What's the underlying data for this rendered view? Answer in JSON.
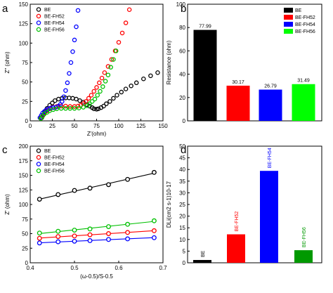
{
  "colors": {
    "BE": "#000000",
    "BE-FH52": "#ff0000",
    "BE-FH54": "#0000ff",
    "BE-FH56": "#00c000",
    "bar_BE-FH56": "#00ff00",
    "legend_BE-FH56_d": "#009900"
  },
  "chart_data": [
    {
      "panel": "a",
      "type": "scatter",
      "xlabel": "Z'(ohm)",
      "ylabel": "Z'' (ohm)",
      "xlim": [
        0,
        150
      ],
      "ylim": [
        0,
        150
      ],
      "xticks": [
        "0",
        "25",
        "50",
        "75",
        "100",
        "125",
        "150"
      ],
      "yticks": [
        "0",
        "25",
        "50",
        "75",
        "100",
        "125",
        "150"
      ],
      "legend_position": "top-left",
      "series": [
        {
          "name": "BE",
          "color": "#000000",
          "x": [
            13,
            15,
            17,
            19,
            22,
            25,
            28,
            32,
            36,
            40,
            44,
            48,
            52,
            56,
            60,
            64,
            67,
            70,
            72,
            75,
            77,
            80,
            83,
            86,
            90,
            94,
            98,
            103,
            108,
            114,
            120,
            128,
            136,
            144
          ],
          "y": [
            4,
            8,
            12,
            16,
            20,
            23,
            26,
            28,
            29,
            29.5,
            29.5,
            29,
            28,
            26,
            24,
            21,
            19,
            17,
            15.5,
            15,
            15.5,
            17,
            19,
            22,
            25,
            29,
            33,
            37,
            41,
            45,
            49,
            54,
            58,
            62
          ]
        },
        {
          "name": "BE-FH52",
          "color": "#ff0000",
          "x": [
            12,
            14,
            16,
            19,
            22,
            26,
            30,
            35,
            40,
            45,
            50,
            54,
            57,
            60,
            63,
            66,
            69,
            72,
            75,
            78,
            81,
            84,
            88,
            92,
            96,
            100,
            104,
            108,
            112
          ],
          "y": [
            4,
            7,
            10,
            13,
            15.5,
            17.5,
            18.5,
            19,
            19,
            18.5,
            18.5,
            19,
            20,
            22,
            25,
            29,
            33,
            38,
            43,
            49,
            55,
            62,
            70,
            79,
            90,
            101,
            113,
            126,
            143
          ]
        },
        {
          "name": "BE-FH54",
          "color": "#0000ff",
          "x": [
            11,
            12.5,
            14,
            16,
            18,
            20.5,
            23,
            26,
            29,
            32,
            34,
            36,
            38,
            40,
            42,
            44,
            46,
            48,
            50,
            52,
            54
          ],
          "y": [
            4,
            7,
            10,
            12,
            14,
            15.5,
            16.5,
            17,
            17.5,
            19,
            21,
            25,
            31,
            39,
            49,
            61,
            75,
            89,
            104,
            121,
            142
          ]
        },
        {
          "name": "BE-FH56",
          "color": "#00c000",
          "x": [
            12,
            14,
            16,
            19,
            22,
            26,
            30,
            35,
            40,
            45,
            50,
            55,
            60,
            64,
            67,
            70,
            73,
            76,
            79,
            82,
            85,
            88,
            91,
            94,
            97
          ],
          "y": [
            3,
            6,
            9,
            11,
            13,
            14.5,
            15.5,
            16,
            16,
            16,
            16,
            16.5,
            17.5,
            19.5,
            22,
            25,
            28,
            33,
            38,
            44,
            51,
            59,
            69,
            79,
            90
          ]
        }
      ]
    },
    {
      "panel": "b",
      "type": "bar",
      "xlabel": "",
      "ylabel": "Resistance (ohm)",
      "ylim": [
        0,
        100
      ],
      "yticks": [
        "0",
        "20",
        "40",
        "60",
        "80",
        "100"
      ],
      "categories": [
        "BE",
        "BE-FH52",
        "BE-FH54",
        "BE-FH56"
      ],
      "values": [
        77.99,
        30.17,
        26.79,
        31.49
      ],
      "value_labels": [
        "77.99",
        "30.17",
        "26.79",
        "31.49"
      ],
      "colors": [
        "#000000",
        "#ff0000",
        "#0000ff",
        "#00ff00"
      ],
      "legend_position": "top-right"
    },
    {
      "panel": "c",
      "type": "line",
      "xlabel": "(ω-0.5)/S-0.5",
      "ylabel": "Z' (ohm)",
      "xlim": [
        0.4,
        0.7
      ],
      "ylim": [
        0,
        200
      ],
      "xticks": [
        "0.4",
        "0.5",
        "0.6",
        "0.7"
      ],
      "yticks": [
        "0",
        "25",
        "50",
        "75",
        "100",
        "125",
        "150",
        "175",
        "200"
      ],
      "legend_position": "top-left",
      "x": [
        0.421,
        0.463,
        0.5,
        0.535,
        0.577,
        0.62,
        0.68
      ],
      "series": [
        {
          "name": "BE",
          "color": "#000000",
          "values": [
            109,
            117,
            124,
            128,
            134,
            143,
            155
          ]
        },
        {
          "name": "BE-FH52",
          "color": "#ff0000",
          "values": [
            42,
            45,
            46,
            48,
            50,
            52,
            55
          ]
        },
        {
          "name": "BE-FH54",
          "color": "#0000ff",
          "values": [
            34,
            36,
            37,
            38,
            40,
            41,
            43
          ]
        },
        {
          "name": "BE-FH56",
          "color": "#00c000",
          "values": [
            51,
            54,
            56,
            58,
            62,
            66,
            72
          ]
        }
      ]
    },
    {
      "panel": "d",
      "type": "bar",
      "xlabel": "",
      "ylabel": "DLi(cm2 s-1)10-17",
      "ylim": [
        0,
        50
      ],
      "yticks": [
        "0",
        "5",
        "10",
        "15",
        "20",
        "25",
        "30",
        "35",
        "40",
        "45",
        "50"
      ],
      "categories": [
        "BE",
        "BE-FH52",
        "BE-FH54",
        "BE-FH56"
      ],
      "values": [
        1.2,
        12.2,
        39.4,
        5.4
      ],
      "colors": [
        "#000000",
        "#ff0000",
        "#0000ff",
        "#009900"
      ]
    }
  ]
}
